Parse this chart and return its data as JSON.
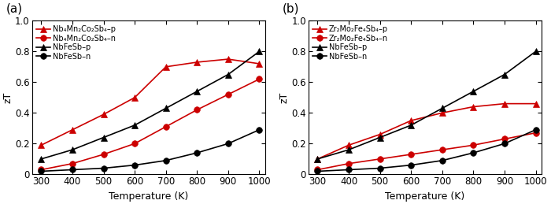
{
  "temperature": [
    300,
    400,
    500,
    600,
    700,
    800,
    900,
    1000
  ],
  "panel_a": {
    "label": "(a)",
    "series": [
      {
        "label": "Nb₄Mn₂Co₂Sb₄–p",
        "color": "#cc0000",
        "marker": "^",
        "zT": [
          0.19,
          0.29,
          0.39,
          0.5,
          0.7,
          0.73,
          0.75,
          0.72
        ]
      },
      {
        "label": "Nb₄Mn₂Co₂Sb₄–n",
        "color": "#cc0000",
        "marker": "o",
        "zT": [
          0.03,
          0.07,
          0.13,
          0.2,
          0.31,
          0.42,
          0.52,
          0.62
        ]
      },
      {
        "label": "NbFeSb–p",
        "color": "#000000",
        "marker": "^",
        "zT": [
          0.1,
          0.16,
          0.24,
          0.32,
          0.43,
          0.54,
          0.65,
          0.8
        ]
      },
      {
        "label": "NbFeSb–n",
        "color": "#000000",
        "marker": "o",
        "zT": [
          0.02,
          0.03,
          0.04,
          0.06,
          0.09,
          0.14,
          0.2,
          0.29
        ]
      }
    ]
  },
  "panel_b": {
    "label": "(b)",
    "series": [
      {
        "label": "Zr₂Mo₂Fe₄Sb₄–p",
        "color": "#cc0000",
        "marker": "^",
        "zT": [
          0.1,
          0.19,
          0.26,
          0.35,
          0.4,
          0.44,
          0.46,
          0.46
        ]
      },
      {
        "label": "Zr₂Mo₂Fe₄Sb₄–n",
        "color": "#cc0000",
        "marker": "o",
        "zT": [
          0.03,
          0.07,
          0.1,
          0.13,
          0.16,
          0.19,
          0.23,
          0.27
        ]
      },
      {
        "label": "NbFeSb–p",
        "color": "#000000",
        "marker": "^",
        "zT": [
          0.1,
          0.16,
          0.24,
          0.32,
          0.43,
          0.54,
          0.65,
          0.8
        ]
      },
      {
        "label": "NbFeSb–n",
        "color": "#000000",
        "marker": "o",
        "zT": [
          0.02,
          0.03,
          0.04,
          0.06,
          0.09,
          0.14,
          0.2,
          0.29
        ]
      }
    ]
  },
  "ylim": [
    0,
    1.0
  ],
  "xlim": [
    270,
    1020
  ],
  "xticks": [
    300,
    400,
    500,
    600,
    700,
    800,
    900,
    1000
  ],
  "yticks": [
    0,
    0.2,
    0.4,
    0.6,
    0.8,
    1.0
  ],
  "xlabel": "Temperature (K)",
  "ylabel": "zT",
  "markersize": 5.5,
  "linewidth": 1.2,
  "background_color": "#ffffff"
}
